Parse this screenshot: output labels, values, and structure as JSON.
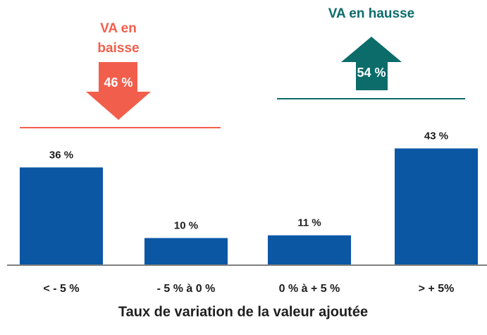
{
  "chart_data": {
    "type": "bar",
    "xlabel": "Taux de variation de la valeur ajoutée",
    "categories": [
      "< - 5 %",
      "- 5 % à 0 %",
      "0 % à + 5 %",
      "> + 5%"
    ],
    "values": [
      36,
      10,
      11,
      43
    ],
    "value_labels": [
      "36 %",
      "10 %",
      "11 %",
      "43 %"
    ],
    "color": "#0b57a4",
    "annotations": [
      {
        "text": "VA en baisse",
        "value": 46,
        "label": "46 %",
        "color": "#f15f4c",
        "direction": "down"
      },
      {
        "text": "VA en hausse",
        "value": 54,
        "label": "54 %",
        "color": "#0b6c6a",
        "direction": "up"
      }
    ]
  }
}
